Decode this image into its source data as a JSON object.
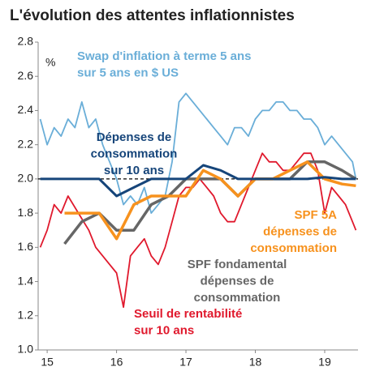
{
  "chart_data": {
    "type": "line",
    "title": "L'évolution des attentes inflationnistes",
    "y_unit": "%",
    "xlim": [
      14.87,
      19.48
    ],
    "xticks": [
      15,
      16,
      17,
      18,
      19
    ],
    "ylim": [
      1.0,
      2.8
    ],
    "yticks": [
      {
        "value": 1.0,
        "label": "1.0"
      },
      1.2,
      1.4,
      1.6,
      1.8,
      {
        "value": 2.0,
        "label": "2.0"
      },
      2.2,
      2.4,
      2.6,
      2.8
    ],
    "hline": 2.0,
    "series": [
      {
        "label": [
          "Swap d'inflation à terme 5 ans",
          "sur 5 ans en $ US"
        ],
        "color": "#6aaed8",
        "x": [
          14.9,
          15.0,
          15.1,
          15.2,
          15.3,
          15.4,
          15.5,
          15.6,
          15.7,
          15.8,
          15.9,
          16.0,
          16.1,
          16.2,
          16.3,
          16.4,
          16.5,
          16.6,
          16.7,
          16.8,
          16.9,
          17.0,
          17.1,
          17.2,
          17.3,
          17.4,
          17.5,
          17.6,
          17.7,
          17.8,
          17.9,
          18.0,
          18.1,
          18.2,
          18.3,
          18.4,
          18.5,
          18.6,
          18.7,
          18.8,
          18.9,
          19.0,
          19.1,
          19.2,
          19.3,
          19.4,
          19.45
        ],
        "values": [
          2.35,
          2.2,
          2.3,
          2.25,
          2.35,
          2.3,
          2.45,
          2.3,
          2.35,
          2.2,
          2.1,
          2.0,
          1.85,
          1.9,
          1.85,
          1.95,
          1.8,
          1.85,
          1.9,
          2.1,
          2.45,
          2.5,
          2.45,
          2.4,
          2.35,
          2.3,
          2.25,
          2.2,
          2.3,
          2.3,
          2.25,
          2.35,
          2.4,
          2.4,
          2.45,
          2.45,
          2.4,
          2.4,
          2.35,
          2.35,
          2.3,
          2.2,
          2.25,
          2.2,
          2.15,
          2.1,
          2.0
        ]
      },
      {
        "label": [
          "Dépenses de",
          "consommation",
          "sur 10 ans"
        ],
        "color": "#16457a",
        "x": [
          14.9,
          15.25,
          15.5,
          15.75,
          16.0,
          16.25,
          16.5,
          16.75,
          17.0,
          17.25,
          17.5,
          17.75,
          18.0,
          18.25,
          18.5,
          18.75,
          19.0,
          19.25,
          19.45
        ],
        "values": [
          2.0,
          2.0,
          2.0,
          2.0,
          1.9,
          1.95,
          2.0,
          2.0,
          2.0,
          2.08,
          2.05,
          2.0,
          2.0,
          2.0,
          2.0,
          2.0,
          2.01,
          2.0,
          2.0
        ]
      },
      {
        "label": [
          "Seuil de rentabilité",
          "sur 10 ans"
        ],
        "color": "#e0192d",
        "x": [
          14.9,
          15.0,
          15.1,
          15.2,
          15.3,
          15.45,
          15.6,
          15.7,
          15.8,
          15.9,
          16.0,
          16.05,
          16.1,
          16.2,
          16.3,
          16.4,
          16.5,
          16.6,
          16.7,
          16.8,
          16.9,
          17.0,
          17.1,
          17.2,
          17.3,
          17.4,
          17.5,
          17.6,
          17.7,
          17.8,
          17.9,
          18.0,
          18.1,
          18.2,
          18.3,
          18.4,
          18.5,
          18.6,
          18.7,
          18.8,
          18.9,
          19.0,
          19.1,
          19.2,
          19.3,
          19.4,
          19.45
        ],
        "values": [
          1.6,
          1.7,
          1.85,
          1.8,
          1.9,
          1.8,
          1.7,
          1.6,
          1.55,
          1.5,
          1.45,
          1.35,
          1.25,
          1.55,
          1.6,
          1.65,
          1.55,
          1.5,
          1.6,
          1.75,
          1.9,
          1.95,
          1.95,
          2.0,
          1.95,
          1.9,
          1.8,
          1.75,
          1.75,
          1.85,
          1.95,
          2.05,
          2.15,
          2.1,
          2.1,
          2.05,
          2.05,
          2.1,
          2.15,
          2.15,
          2.05,
          1.8,
          1.95,
          1.9,
          1.85,
          1.75,
          1.7
        ]
      },
      {
        "label": [
          "SPF 5A",
          "dépenses de",
          "consommation"
        ],
        "color": "#f7921e",
        "x": [
          15.25,
          15.5,
          15.75,
          16.0,
          16.25,
          16.5,
          16.75,
          17.0,
          17.25,
          17.5,
          17.75,
          18.0,
          18.25,
          18.5,
          18.75,
          19.0,
          19.25,
          19.45
        ],
        "values": [
          1.8,
          1.8,
          1.8,
          1.65,
          1.85,
          1.9,
          1.9,
          1.9,
          2.05,
          2.0,
          1.9,
          2.0,
          2.0,
          2.05,
          2.1,
          2.0,
          1.97,
          1.96
        ]
      },
      {
        "label": [
          "SPF fondamental",
          "dépenses de",
          "consommation"
        ],
        "color": "#666666",
        "x": [
          15.25,
          15.5,
          15.75,
          16.0,
          16.25,
          16.5,
          16.75,
          17.0,
          17.25,
          17.5,
          17.75,
          18.0,
          18.25,
          18.5,
          18.75,
          19.0,
          19.25,
          19.45
        ],
        "values": [
          1.62,
          1.75,
          1.8,
          1.7,
          1.7,
          1.85,
          1.9,
          2.0,
          2.0,
          2.0,
          1.9,
          2.0,
          2.0,
          2.0,
          2.1,
          2.1,
          2.05,
          2.0
        ]
      }
    ]
  }
}
